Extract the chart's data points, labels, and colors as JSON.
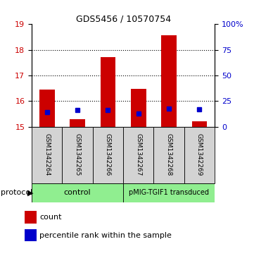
{
  "title": "GDS5456 / 10570754",
  "samples": [
    "GSM1342264",
    "GSM1342265",
    "GSM1342266",
    "GSM1342267",
    "GSM1342268",
    "GSM1342269"
  ],
  "red_values": [
    16.45,
    15.3,
    17.72,
    16.47,
    18.58,
    15.2
  ],
  "blue_percentiles": [
    14,
    16,
    16,
    13,
    18,
    17
  ],
  "ylim_left": [
    15,
    19
  ],
  "ylim_right": [
    0,
    100
  ],
  "left_ticks": [
    15,
    16,
    17,
    18,
    19
  ],
  "right_ticks": [
    0,
    25,
    50,
    75,
    100
  ],
  "right_tick_labels": [
    "0",
    "25",
    "50",
    "75",
    "100%"
  ],
  "bar_color_red": "#CC0000",
  "bar_color_blue": "#0000CC",
  "grid_color": "black",
  "background_color": "#ffffff",
  "label_count": "count",
  "label_percentile": "percentile rank within the sample",
  "protocol_text": "protocol",
  "control_label": "control",
  "pmig_label": "pMIG-TGIF1 transduced",
  "protocol_color": "#90EE90",
  "sample_bg_color": "#d3d3d3"
}
